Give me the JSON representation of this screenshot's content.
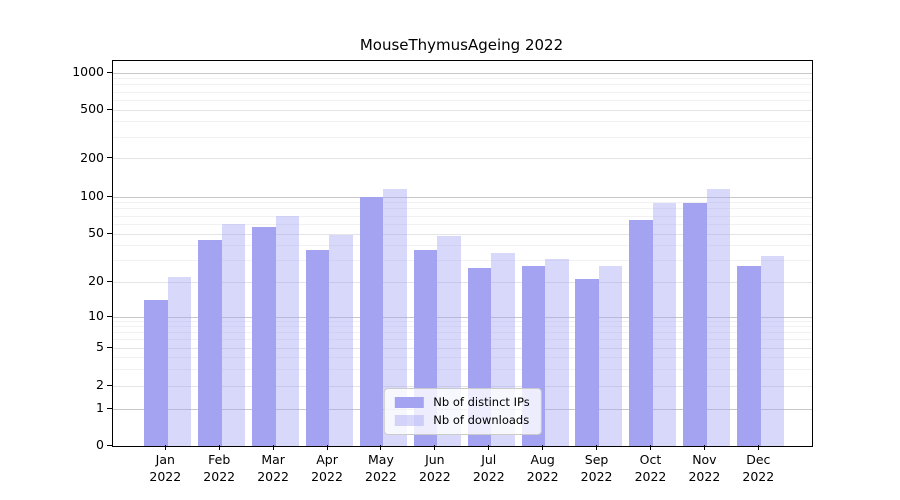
{
  "chart_data": {
    "type": "bar",
    "title": "MouseThymusAgeing 2022",
    "year": "2022",
    "categories": [
      "Jan",
      "Feb",
      "Mar",
      "Apr",
      "May",
      "Jun",
      "Jul",
      "Aug",
      "Sep",
      "Oct",
      "Nov",
      "Dec"
    ],
    "series": [
      {
        "name": "Nb of distinct IPs",
        "color": "#a3a3f2",
        "values": [
          14,
          45,
          57,
          37,
          100,
          37,
          26,
          27,
          21,
          65,
          90,
          27
        ]
      },
      {
        "name": "Nb of downloads",
        "color": "rgba(163,163,242,0.42)",
        "values": [
          22,
          60,
          70,
          49,
          115,
          48,
          35,
          31,
          27,
          89,
          116,
          33
        ]
      }
    ],
    "yscale": "log",
    "ytick_labels": [
      "1000",
      "500",
      "200",
      "100",
      "50",
      "20",
      "10",
      "5",
      "2",
      "1",
      "0"
    ],
    "grid": "on",
    "legend_position": "lower center"
  }
}
